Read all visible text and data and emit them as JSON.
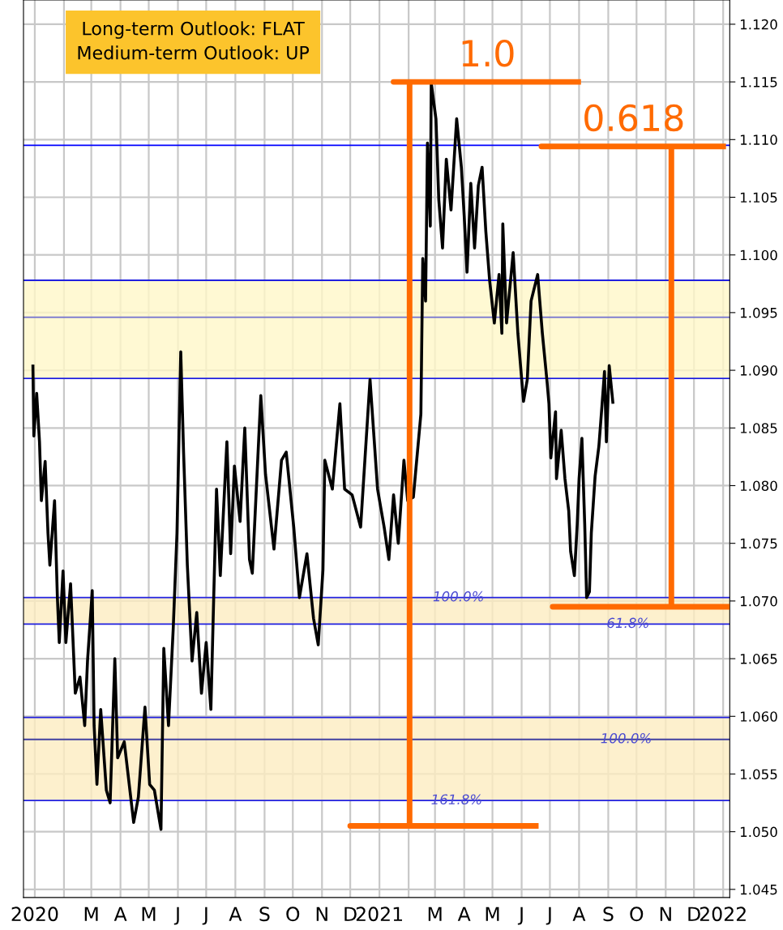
{
  "chart_data": {
    "type": "line",
    "xlim": [
      "2019-12-20",
      "2022-01-08"
    ],
    "xticks": [
      {
        "value": "2020-01-01",
        "label": "2020"
      },
      {
        "value": "2020-02-01",
        "label": null
      },
      {
        "value": "2020-03-01",
        "label": "M"
      },
      {
        "value": "2020-04-01",
        "label": "A"
      },
      {
        "value": "2020-05-01",
        "label": "M"
      },
      {
        "value": "2020-06-01",
        "label": "J"
      },
      {
        "value": "2020-07-01",
        "label": "J"
      },
      {
        "value": "2020-08-01",
        "label": "A"
      },
      {
        "value": "2020-09-01",
        "label": "S"
      },
      {
        "value": "2020-10-01",
        "label": "O"
      },
      {
        "value": "2020-11-01",
        "label": "N"
      },
      {
        "value": "2020-12-01",
        "label": "D"
      },
      {
        "value": "2021-01-01",
        "label": "2021"
      },
      {
        "value": "2021-02-01",
        "label": null
      },
      {
        "value": "2021-03-01",
        "label": "M"
      },
      {
        "value": "2021-04-01",
        "label": "A"
      },
      {
        "value": "2021-05-01",
        "label": "M"
      },
      {
        "value": "2021-06-01",
        "label": "J"
      },
      {
        "value": "2021-07-01",
        "label": "J"
      },
      {
        "value": "2021-08-01",
        "label": "A"
      },
      {
        "value": "2021-09-01",
        "label": "S"
      },
      {
        "value": "2021-10-01",
        "label": "O"
      },
      {
        "value": "2021-11-01",
        "label": "N"
      },
      {
        "value": "2021-12-01",
        "label": "D"
      },
      {
        "value": "2022-01-01",
        "label": "2022"
      }
    ],
    "ylim": [
      1.0443,
      1.1221
    ],
    "yticks": [
      {
        "value": 1.045,
        "label": "1.045"
      },
      {
        "value": 1.05,
        "label": "1.050"
      },
      {
        "value": 1.055,
        "label": "1.055"
      },
      {
        "value": 1.06,
        "label": "1.060"
      },
      {
        "value": 1.065,
        "label": "1.065"
      },
      {
        "value": 1.07,
        "label": "1.070"
      },
      {
        "value": 1.075,
        "label": "1.075"
      },
      {
        "value": 1.08,
        "label": "1.080"
      },
      {
        "value": 1.085,
        "label": "1.085"
      },
      {
        "value": 1.09,
        "label": "1.090"
      },
      {
        "value": 1.095,
        "label": "1.095"
      },
      {
        "value": 1.1,
        "label": "1.100"
      },
      {
        "value": 1.105,
        "label": "1.105"
      },
      {
        "value": 1.11,
        "label": "1.110"
      },
      {
        "value": 1.115,
        "label": "1.115"
      },
      {
        "value": 1.12,
        "label": "1.120"
      }
    ],
    "grid": true,
    "legend": false,
    "series": [
      {
        "color": "#000000",
        "x": [
          "2019-12-30",
          "2019-12-31",
          "2020-01-03",
          "2020-01-06",
          "2020-01-08",
          "2020-01-12",
          "2020-01-15",
          "2020-01-17",
          "2020-01-22",
          "2020-01-25",
          "2020-01-27",
          "2020-01-31",
          "2020-02-03",
          "2020-02-08",
          "2020-02-13",
          "2020-02-18",
          "2020-02-23",
          "2020-02-26",
          "2020-03-02",
          "2020-03-04",
          "2020-03-07",
          "2020-03-11",
          "2020-03-17",
          "2020-03-21",
          "2020-03-26",
          "2020-03-29",
          "2020-04-05",
          "2020-04-09",
          "2020-04-15",
          "2020-04-20",
          "2020-04-27",
          "2020-05-02",
          "2020-05-07",
          "2020-05-14",
          "2020-05-17",
          "2020-05-22",
          "2020-05-27",
          "2020-05-31",
          "2020-06-04",
          "2020-06-07",
          "2020-06-11",
          "2020-06-16",
          "2020-06-21",
          "2020-06-26",
          "2020-07-01",
          "2020-07-06",
          "2020-07-09",
          "2020-07-12",
          "2020-07-16",
          "2020-07-23",
          "2020-07-27",
          "2020-07-31",
          "2020-08-06",
          "2020-08-11",
          "2020-08-16",
          "2020-08-19",
          "2020-08-28",
          "2020-09-02",
          "2020-09-11",
          "2020-09-19",
          "2020-09-24",
          "2020-10-02",
          "2020-10-08",
          "2020-10-16",
          "2020-10-23",
          "2020-10-28",
          "2020-11-02",
          "2020-11-04",
          "2020-11-12",
          "2020-11-20",
          "2020-11-25",
          "2020-12-03",
          "2020-12-12",
          "2020-12-22",
          "2020-12-30",
          "2021-01-06",
          "2021-01-11",
          "2021-01-16",
          "2021-01-21",
          "2021-01-27",
          "2021-01-31",
          "2021-02-06",
          "2021-02-14",
          "2021-02-16",
          "2021-02-19",
          "2021-02-21",
          "2021-02-24",
          "2021-02-25",
          "2021-03-02",
          "2021-03-05",
          "2021-03-09",
          "2021-03-13",
          "2021-03-18",
          "2021-03-24",
          "2021-03-29",
          "2021-04-01",
          "2021-04-04",
          "2021-04-08",
          "2021-04-12",
          "2021-04-16",
          "2021-04-20",
          "2021-04-24",
          "2021-04-28",
          "2021-05-03",
          "2021-05-08",
          "2021-05-11",
          "2021-05-12",
          "2021-05-16",
          "2021-05-23",
          "2021-05-28",
          "2021-06-03",
          "2021-06-07",
          "2021-06-11",
          "2021-06-18",
          "2021-06-23",
          "2021-06-28",
          "2021-06-30",
          "2021-07-02",
          "2021-07-07",
          "2021-07-08",
          "2021-07-13",
          "2021-07-17",
          "2021-07-21",
          "2021-07-23",
          "2021-07-27",
          "2021-07-30",
          "2021-08-01",
          "2021-08-04",
          "2021-08-07",
          "2021-08-09",
          "2021-08-12",
          "2021-08-14",
          "2021-08-18",
          "2021-08-22",
          "2021-08-25",
          "2021-08-28",
          "2021-08-30",
          "2021-09-02",
          "2021-09-06"
        ],
        "values": [
          1.0905,
          1.0843,
          1.088,
          1.0838,
          1.0787,
          1.0821,
          1.0759,
          1.0731,
          1.0787,
          1.0703,
          1.0664,
          1.0726,
          1.0664,
          1.0715,
          1.062,
          1.0634,
          1.0592,
          1.0648,
          1.0709,
          1.0592,
          1.0541,
          1.0606,
          1.0536,
          1.0525,
          1.065,
          1.0564,
          1.0578,
          1.055,
          1.0508,
          1.053,
          1.0608,
          1.0541,
          1.0536,
          1.0502,
          1.0659,
          1.0592,
          1.0676,
          1.0759,
          1.0916,
          1.0829,
          1.0731,
          1.0648,
          1.069,
          1.062,
          1.0664,
          1.0606,
          1.0703,
          1.0797,
          1.0722,
          1.0838,
          1.0741,
          1.0817,
          1.0769,
          1.085,
          1.0736,
          1.0724,
          1.0878,
          1.081,
          1.0745,
          1.0822,
          1.0829,
          1.0764,
          1.0703,
          1.0741,
          1.0685,
          1.0662,
          1.0727,
          1.0822,
          1.0797,
          1.0871,
          1.0797,
          1.0792,
          1.0764,
          1.0892,
          1.0797,
          1.0764,
          1.0736,
          1.0792,
          1.075,
          1.0822,
          1.0787,
          1.079,
          1.0862,
          1.0997,
          1.096,
          1.1097,
          1.1025,
          1.1149,
          1.1118,
          1.1048,
          1.1006,
          1.1083,
          1.1039,
          1.1118,
          1.1076,
          1.1034,
          1.0985,
          1.1062,
          1.1006,
          1.106,
          1.1076,
          1.102,
          1.0978,
          1.0941,
          1.0983,
          1.0932,
          1.1027,
          1.0941,
          1.1002,
          1.0932,
          1.0873,
          1.0892,
          1.096,
          1.0983,
          1.0932,
          1.089,
          1.0871,
          1.0824,
          1.0864,
          1.0806,
          1.0848,
          1.0806,
          1.0778,
          1.0743,
          1.0722,
          1.0766,
          1.0806,
          1.0841,
          1.0766,
          1.0703,
          1.0708,
          1.0759,
          1.0808,
          1.0834,
          1.0866,
          1.0899,
          1.0838,
          1.0904,
          1.0871
        ]
      },
      {
        "name": "1.0",
        "color": "#ff6a00",
        "x": [
          "2021-08-03",
          "2021-01-16",
          "2021-02-02",
          "2021-02-02",
          "2020-12-01",
          "2021-06-19"
        ],
        "values": [
          1.115,
          1.115,
          1.115,
          1.0505,
          1.0505,
          1.0505
        ]
      },
      {
        "name": "0.618",
        "color": "#ff6a00",
        "x": [
          "2022-01-04",
          "2021-06-22",
          "2021-11-07",
          "2021-11-07",
          "2021-07-04",
          "2022-01-08"
        ],
        "values": [
          1.1094,
          1.1094,
          1.1094,
          1.0695,
          1.0695,
          1.0695
        ]
      }
    ],
    "bands": [
      {
        "axis": "y",
        "from": 1.0893,
        "to": 1.0978,
        "color": "#fff8c8"
      },
      {
        "axis": "y",
        "from": 1.068,
        "to": 1.0703,
        "color": "#fcecc0"
      },
      {
        "axis": "y",
        "from": 1.0527,
        "to": 1.0599,
        "color": "#fcecc0"
      }
    ],
    "ref_lines": [
      {
        "axis": "y",
        "value": 1.1095,
        "color": "#0000ff"
      },
      {
        "axis": "y",
        "value": 1.0946,
        "color": "#7070d0"
      },
      {
        "axis": "y",
        "value": 1.058,
        "color": "#4040a0"
      }
    ],
    "annotations": [
      "Long-term Outlook: FLAT",
      "Medium-term Outlook: UP",
      {
        "text": "100.0%",
        "x": "2021-03-26",
        "y": 1.0703
      },
      {
        "text": "61.8%",
        "x": "2021-09-22",
        "y": 1.068
      },
      {
        "text": "100.0%",
        "x": "2021-09-20",
        "y": 1.058
      },
      {
        "text": "161.8%",
        "x": "2021-03-24",
        "y": 1.0527
      }
    ]
  }
}
